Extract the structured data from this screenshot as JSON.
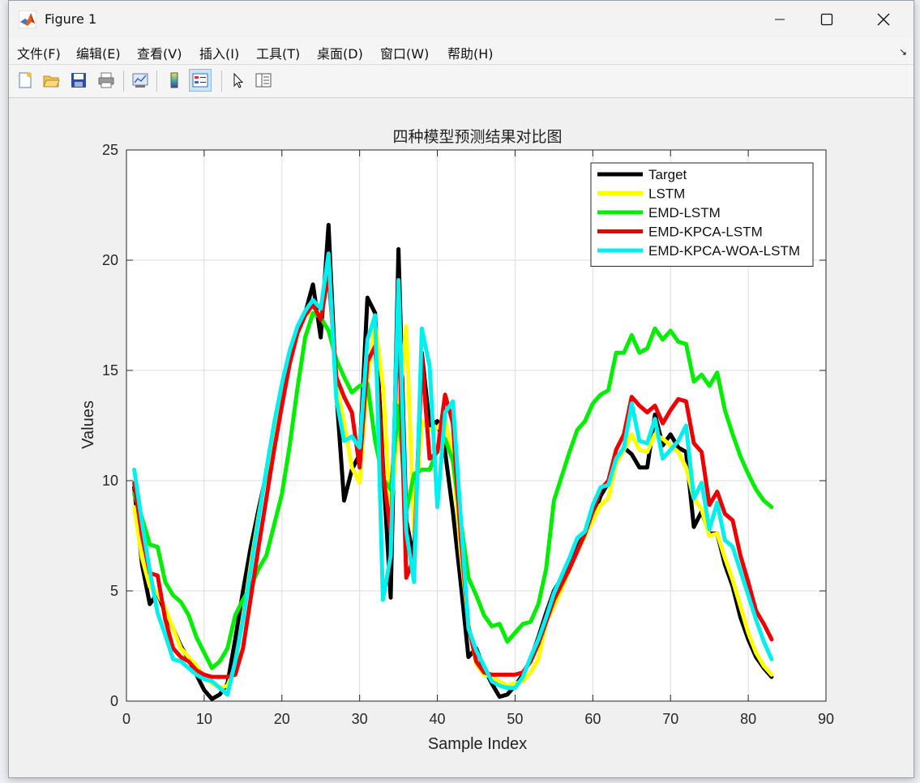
{
  "window": {
    "title": "Figure 1"
  },
  "menu": [
    "文件(F)",
    "编辑(E)",
    "查看(V)",
    "插入(I)",
    "工具(T)",
    "桌面(D)",
    "窗口(W)",
    "帮助(H)"
  ],
  "toolbar": [
    "new-figure-icon",
    "open-folder-icon",
    "save-icon",
    "print-icon",
    "link-plot-icon",
    "colorbar-icon",
    "legend-icon",
    "pointer-icon",
    "property-inspector-icon"
  ],
  "chart_data": {
    "type": "line",
    "title": "四种模型预测结果对比图",
    "xlabel": "Sample Index",
    "ylabel": "Values",
    "xlim": [
      0,
      90
    ],
    "ylim": [
      0,
      25
    ],
    "xticks": [
      0,
      10,
      20,
      30,
      40,
      50,
      60,
      70,
      80,
      90
    ],
    "yticks": [
      0,
      5,
      10,
      15,
      20,
      25
    ],
    "grid": true,
    "legend_position": "top-right",
    "x": [
      1,
      2,
      3,
      4,
      5,
      6,
      7,
      8,
      9,
      10,
      11,
      12,
      13,
      14,
      15,
      16,
      17,
      18,
      19,
      20,
      21,
      22,
      23,
      24,
      25,
      26,
      27,
      28,
      29,
      30,
      31,
      32,
      33,
      34,
      35,
      36,
      37,
      38,
      39,
      40,
      41,
      42,
      43,
      44,
      45,
      46,
      47,
      48,
      49,
      50,
      51,
      52,
      53,
      54,
      55,
      56,
      57,
      58,
      59,
      60,
      61,
      62,
      63,
      64,
      65,
      66,
      67,
      68,
      69,
      70,
      71,
      72,
      73,
      74,
      75,
      76,
      77,
      78,
      79,
      80,
      81,
      82,
      83
    ],
    "series": [
      {
        "name": "Target",
        "color": "#000000",
        "values": [
          9.7,
          6.2,
          4.4,
          4.9,
          4.0,
          3.3,
          2.5,
          1.9,
          1.2,
          0.5,
          0.1,
          0.3,
          0.8,
          2.8,
          5.0,
          7.0,
          8.7,
          10.3,
          11.8,
          13.7,
          15.4,
          16.8,
          17.6,
          18.9,
          16.5,
          21.6,
          14.0,
          9.1,
          10.5,
          11.2,
          18.3,
          17.6,
          10.7,
          4.7,
          20.5,
          8.2,
          6.4,
          15.8,
          12.5,
          12.7,
          11.3,
          8.6,
          5.4,
          2.0,
          2.4,
          1.5,
          0.8,
          0.2,
          0.3,
          0.7,
          1.2,
          1.9,
          2.9,
          4.0,
          5.0,
          5.6,
          6.3,
          7.0,
          7.6,
          8.3,
          9.3,
          9.9,
          10.8,
          11.5,
          11.2,
          10.6,
          10.6,
          13.0,
          11.6,
          12.1,
          11.5,
          11.3,
          7.9,
          8.6,
          7.6,
          7.6,
          6.2,
          5.2,
          3.8,
          2.8,
          2.0,
          1.5,
          1.1
        ]
      },
      {
        "name": "LSTM",
        "color": "#ffff00",
        "values": [
          8.8,
          6.5,
          5.2,
          4.9,
          4.2,
          3.3,
          2.4,
          2.0,
          1.6,
          1.1,
          0.8,
          0.6,
          0.7,
          1.6,
          3.8,
          6.2,
          8.4,
          10.4,
          12.3,
          14.1,
          15.6,
          16.9,
          17.7,
          17.5,
          17.7,
          19.6,
          14.4,
          12.6,
          10.6,
          9.9,
          14.6,
          17.1,
          14.3,
          8.2,
          13.1,
          17.0,
          7.7,
          12.7,
          12.3,
          12.4,
          12.8,
          11.0,
          6.8,
          3.5,
          1.7,
          1.2,
          1.1,
          0.9,
          0.7,
          0.8,
          0.9,
          1.3,
          1.9,
          3.6,
          4.3,
          5.1,
          6.0,
          6.8,
          7.5,
          8.2,
          8.9,
          9.2,
          10.8,
          11.4,
          12.1,
          11.4,
          11.3,
          12.1,
          11.9,
          11.6,
          11.3,
          10.6,
          9.2,
          8.7,
          7.5,
          7.6,
          6.5,
          5.5,
          4.3,
          3.1,
          2.2,
          1.6,
          1.2
        ]
      },
      {
        "name": "EMD-LSTM",
        "color": "#00ee00",
        "values": [
          9.4,
          8.3,
          7.1,
          7.0,
          5.4,
          4.8,
          4.5,
          3.9,
          2.9,
          2.2,
          1.5,
          1.8,
          2.4,
          3.9,
          4.6,
          5.2,
          6.0,
          6.6,
          8.0,
          9.4,
          11.6,
          14.2,
          16.5,
          17.6,
          17.4,
          16.8,
          15.5,
          14.7,
          14.0,
          14.3,
          14.4,
          11.8,
          10.1,
          9.6,
          13.4,
          8.6,
          10.3,
          10.5,
          10.5,
          11.4,
          11.9,
          10.9,
          8.2,
          5.6,
          4.8,
          3.9,
          3.4,
          3.5,
          2.7,
          3.1,
          3.5,
          3.6,
          4.4,
          6.0,
          9.1,
          10.2,
          11.3,
          12.3,
          12.7,
          13.5,
          13.9,
          14.1,
          15.8,
          15.8,
          16.6,
          15.8,
          16.0,
          16.9,
          16.4,
          16.8,
          16.3,
          16.2,
          14.5,
          14.8,
          14.3,
          14.9,
          13.2,
          12.1,
          11.1,
          10.3,
          9.6,
          9.1,
          8.8
        ]
      },
      {
        "name": "EMD-KPCA-LSTM",
        "color": "#ee0000",
        "values": [
          9.9,
          7.5,
          5.8,
          5.7,
          3.7,
          2.4,
          2.0,
          1.8,
          1.4,
          1.2,
          1.1,
          1.1,
          1.1,
          1.2,
          2.4,
          4.7,
          7.0,
          9.2,
          11.4,
          13.4,
          15.3,
          16.7,
          17.5,
          18.0,
          17.3,
          19.4,
          14.7,
          13.8,
          13.1,
          10.6,
          15.4,
          16.1,
          10.4,
          7.6,
          17.6,
          5.6,
          6.5,
          15.6,
          11.0,
          11.3,
          13.9,
          12.6,
          7.5,
          3.4,
          1.8,
          1.3,
          1.2,
          1.2,
          1.2,
          1.2,
          1.3,
          1.8,
          2.6,
          3.6,
          4.6,
          5.3,
          6.0,
          6.8,
          7.6,
          8.6,
          9.6,
          10.0,
          11.4,
          12.1,
          13.8,
          13.4,
          13.1,
          13.4,
          12.6,
          13.2,
          13.7,
          13.6,
          11.7,
          11.3,
          8.9,
          9.5,
          8.5,
          8.2,
          6.6,
          5.4,
          4.1,
          3.5,
          2.8
        ]
      },
      {
        "name": "EMD-KPCA-WOA-LSTM",
        "color": "#00f0f0",
        "values": [
          10.5,
          8.1,
          5.9,
          4.0,
          3.0,
          1.9,
          1.8,
          1.5,
          1.2,
          1.0,
          0.9,
          0.6,
          0.3,
          1.8,
          3.7,
          6.0,
          8.3,
          10.5,
          12.6,
          14.4,
          15.9,
          17.0,
          17.7,
          18.2,
          17.8,
          20.3,
          13.7,
          11.8,
          12.0,
          11.5,
          16.4,
          17.5,
          4.6,
          6.6,
          19.1,
          7.7,
          5.4,
          16.9,
          15.2,
          8.8,
          13.1,
          13.6,
          8.4,
          3.3,
          2.3,
          1.6,
          0.9,
          0.7,
          0.6,
          0.6,
          1.1,
          2.0,
          2.8,
          3.8,
          4.9,
          5.7,
          6.5,
          7.4,
          7.7,
          8.9,
          9.7,
          9.8,
          11.0,
          11.5,
          13.5,
          11.8,
          11.7,
          12.8,
          11.0,
          11.4,
          11.8,
          12.5,
          9.2,
          9.9,
          7.8,
          9.0,
          7.3,
          7.0,
          5.9,
          4.8,
          3.7,
          2.7,
          1.9
        ]
      }
    ]
  }
}
